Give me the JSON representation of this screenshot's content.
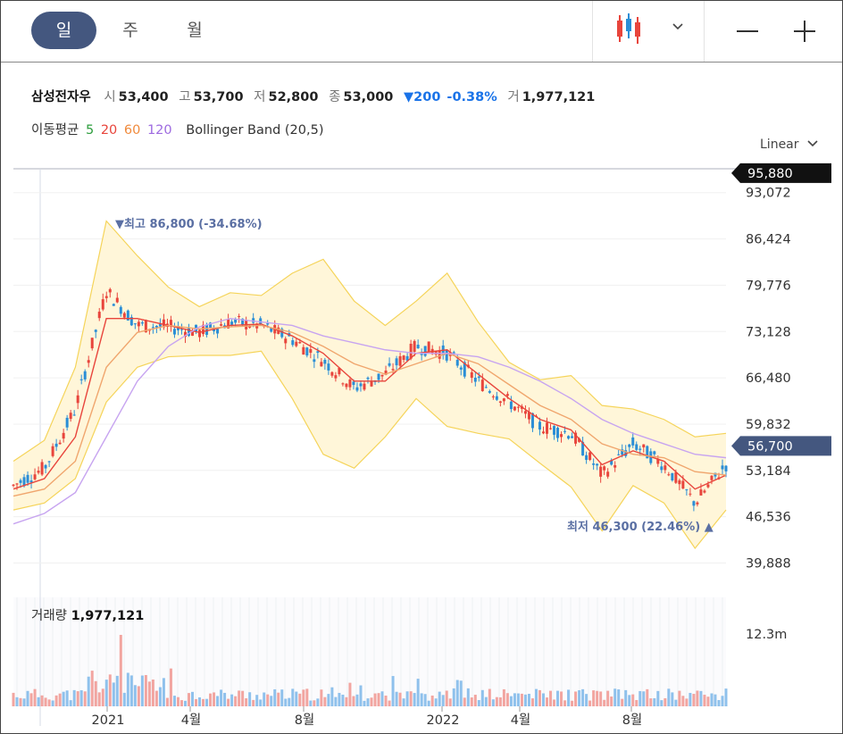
{
  "toolbar": {
    "periods": [
      "일",
      "주",
      "월"
    ],
    "active_period": "일",
    "chart_type_icon": "candlestick-icon",
    "zoom_out_icon": "minus-icon",
    "zoom_in_icon": "plus-icon"
  },
  "quote": {
    "name": "삼성전자우",
    "open_label": "시",
    "open": "53,400",
    "high_label": "고",
    "high": "53,700",
    "low_label": "저",
    "low": "52,800",
    "close_label": "종",
    "close": "53,000",
    "change": "▼200",
    "change_pct": "-0.38%",
    "volume_label": "거",
    "volume": "1,977,121"
  },
  "indicators": {
    "ma_label": "이동평균",
    "ma_periods": [
      {
        "label": "5",
        "color": "#2e9e3e"
      },
      {
        "label": "20",
        "color": "#e8453c"
      },
      {
        "label": "60",
        "color": "#f08a3c"
      },
      {
        "label": "120",
        "color": "#9d6ae0"
      }
    ],
    "bollinger_label": "Bollinger Band (20,5)"
  },
  "scale_select": "Linear",
  "colors": {
    "up": "#e8453c",
    "down": "#2a8ed6",
    "accent": "#44577f",
    "band_fill": "#fff6d9",
    "band_line": "#f5d45a",
    "ma5": "#2e9e3e",
    "ma20": "#e8453c",
    "ma60": "#f0a66e",
    "ma120": "#c7a4f0",
    "volume_up": "#f2a5a0",
    "volume_down": "#8fc1ec"
  },
  "price_axis": {
    "ticks": [
      "93,072",
      "86,424",
      "79,776",
      "73,128",
      "66,480",
      "59,832",
      "53,184",
      "46,536",
      "39,888"
    ],
    "max_label": "95,880",
    "current_label": "56,700"
  },
  "annotations": {
    "high": "▼최고 86,800 (-34.68%)",
    "low": "최저 46,300 (22.46%) ▲"
  },
  "volume": {
    "label": "거래량",
    "value": "1,977,121",
    "axis_tick": "12.3m"
  },
  "time_axis": [
    "2021",
    "4월",
    "8월",
    "2022",
    "4월",
    "8월"
  ],
  "chart_data": {
    "type": "line",
    "x": [
      "2020-11",
      "2020-12",
      "2021-01",
      "2021-02",
      "2021-03",
      "2021-04",
      "2021-05",
      "2021-06",
      "2021-07",
      "2021-08",
      "2021-09",
      "2021-10",
      "2021-11",
      "2021-12",
      "2022-01",
      "2022-02",
      "2022-03",
      "2022-04",
      "2022-05",
      "2022-06",
      "2022-07",
      "2022-08",
      "2022-09",
      "2022-10"
    ],
    "ylim": [
      37000,
      96500
    ],
    "series": [
      {
        "name": "5",
        "values": [
          51000,
          53500,
          62000,
          79000,
          74000,
          73800,
          73000,
          74500,
          74000,
          72000,
          69000,
          65000,
          67000,
          71000,
          70000,
          66000,
          63000,
          59500,
          58500,
          52500,
          57000,
          54000,
          48500,
          54000
        ]
      },
      {
        "name": "20",
        "values": [
          50500,
          52000,
          58000,
          75000,
          75000,
          74000,
          73000,
          74000,
          74200,
          72500,
          70000,
          66000,
          66000,
          70000,
          70500,
          67000,
          63500,
          60500,
          59000,
          54000,
          56000,
          54500,
          50500,
          52500
        ]
      },
      {
        "name": "60",
        "values": [
          49500,
          50500,
          54500,
          68000,
          73000,
          74000,
          73500,
          73800,
          74000,
          73000,
          71000,
          68500,
          67000,
          68500,
          70000,
          68500,
          65500,
          62500,
          60500,
          57000,
          55500,
          55000,
          53000,
          52500
        ]
      },
      {
        "name": "120",
        "values": [
          45500,
          47000,
          50000,
          58000,
          66000,
          71000,
          73800,
          75000,
          74500,
          74000,
          72500,
          71500,
          70500,
          70000,
          70000,
          69500,
          68000,
          66000,
          63500,
          60500,
          58500,
          57000,
          55500,
          55000
        ]
      },
      {
        "name": "Bollinger Band (20,5)",
        "values": [
          51000,
          53000,
          60000,
          76000,
          76000,
          74500,
          73200,
          74200,
          74300,
          72500,
          69500,
          65500,
          66000,
          70500,
          70500,
          66500,
          63200,
          60200,
          58800,
          53500,
          56500,
          54500,
          50000,
          53000
        ]
      }
    ]
  }
}
